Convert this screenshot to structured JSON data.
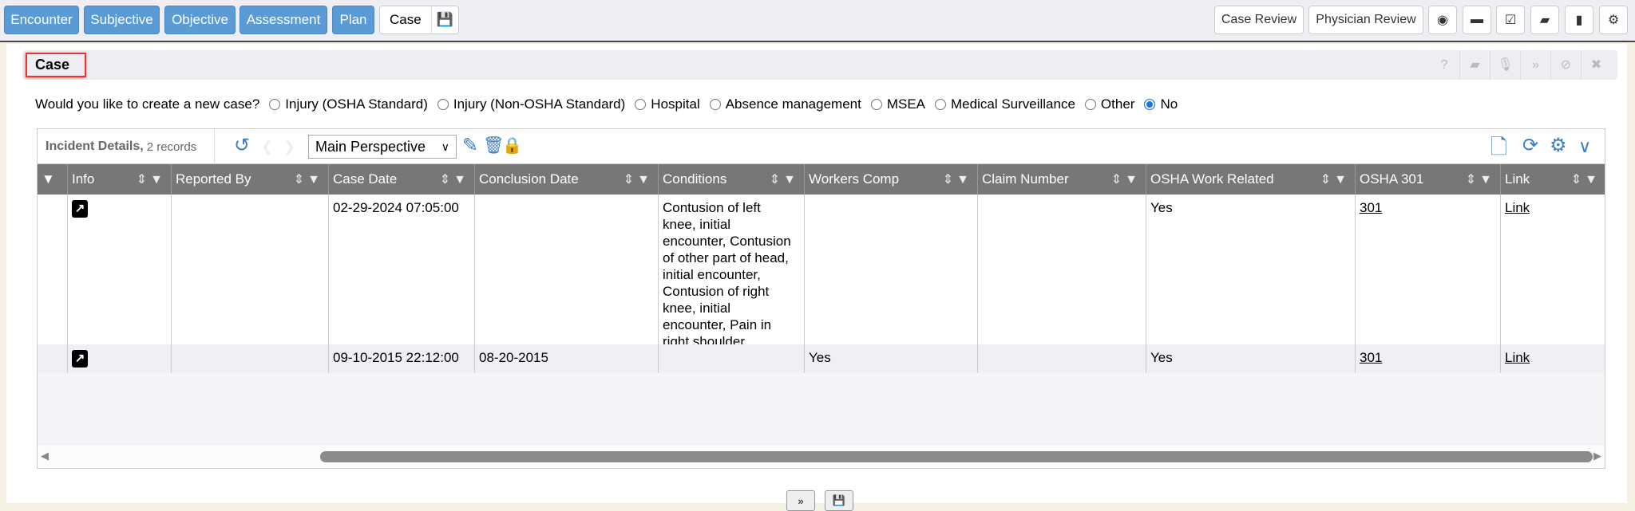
{
  "nav": {
    "tabs": [
      {
        "label": "Encounter"
      },
      {
        "label": "Subjective"
      },
      {
        "label": "Objective"
      },
      {
        "label": "Assessment"
      },
      {
        "label": "Plan"
      }
    ],
    "active_tab": "Case",
    "right_buttons": [
      "Case Review",
      "Physician Review"
    ],
    "right_icons": [
      "eye-icon",
      "archive-icon",
      "calendar-check-icon",
      "book-icon",
      "bookmark-icon",
      "gears-icon"
    ]
  },
  "case_section": {
    "title": "Case",
    "header_icons": [
      "help-icon",
      "book-icon",
      "microphone-icon",
      "chevron-double-down-icon",
      "ban-icon",
      "close-icon"
    ]
  },
  "new_case": {
    "question": "Would you like to create a new case?",
    "options": [
      "Injury (OSHA Standard)",
      "Injury (Non-OSHA Standard)",
      "Hospital",
      "Absence management",
      "MSEA",
      "Medical Surveillance",
      "Other",
      "No"
    ],
    "selected": "No"
  },
  "grid": {
    "title": "Incident Details,",
    "count": "2 records",
    "perspective": "Main Perspective",
    "columns": [
      "Info",
      "Reported By",
      "Case Date",
      "Conclusion Date",
      "Conditions",
      "Workers Comp",
      "Claim Number",
      "OSHA Work Related",
      "OSHA 301",
      "Link"
    ],
    "rows": [
      {
        "info": "external-link-icon",
        "reported_by": "",
        "case_date": "02-29-2024 07:05:00",
        "conclusion_date": "",
        "conditions": "Contusion of left knee, initial encounter, Contusion of other part of head, initial encounter, Contusion of right knee, initial encounter, Pain in right shoulder",
        "workers_comp": "",
        "claim_number": "",
        "osha_work_related": "Yes",
        "osha_301": "301",
        "link": "Link"
      },
      {
        "info": "external-link-icon",
        "reported_by": "",
        "case_date": "09-10-2015 22:12:00",
        "conclusion_date": "08-20-2015",
        "conditions": "",
        "workers_comp": "Yes",
        "claim_number": "",
        "osha_work_related": "Yes",
        "osha_301": "301",
        "link": "Link"
      }
    ]
  },
  "colors": {
    "tab_blue": "#5b9bd5",
    "header_gray": "#777777",
    "accent": "#3a7fc8",
    "highlight_border": "#ee3333"
  }
}
